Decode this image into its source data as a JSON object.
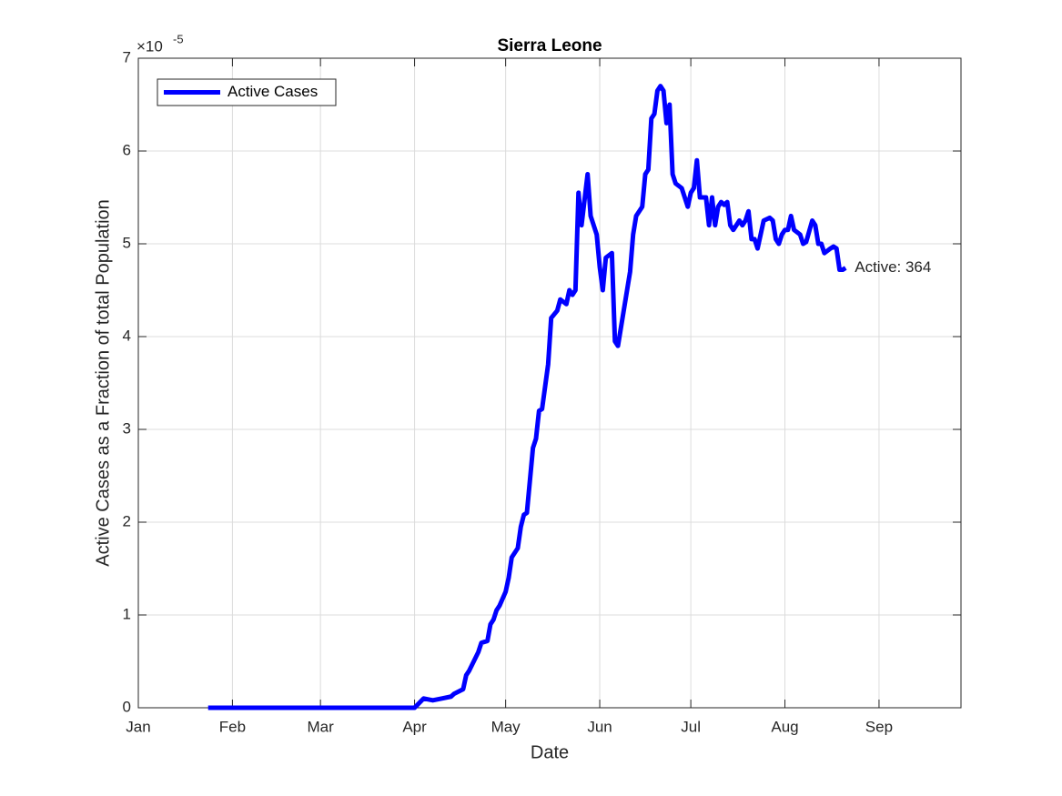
{
  "chart_data": {
    "type": "line",
    "title": "Sierra Leone",
    "x_label": "Date",
    "y_label": "Active Cases as a Fraction of total Population",
    "y_exponent": {
      "base": "×10",
      "power": "-5"
    },
    "annotation": "Active: 364",
    "legend": "top-left",
    "grid": true,
    "xlim": [
      0,
      271
    ],
    "ylim": [
      0,
      7
    ],
    "xticks": [
      {
        "value": 0,
        "label": "Jan"
      },
      {
        "value": 31,
        "label": "Feb"
      },
      {
        "value": 60,
        "label": "Mar"
      },
      {
        "value": 91,
        "label": "Apr"
      },
      {
        "value": 121,
        "label": "May"
      },
      {
        "value": 152,
        "label": "Jun"
      },
      {
        "value": 182,
        "label": "Jul"
      },
      {
        "value": 213,
        "label": "Aug"
      },
      {
        "value": 244,
        "label": "Sep"
      }
    ],
    "yticks": [
      0,
      1,
      2,
      3,
      4,
      5,
      6,
      7
    ],
    "x": [
      23,
      91,
      94,
      97,
      100,
      103,
      104,
      107,
      108,
      109,
      112,
      113,
      115,
      116,
      117,
      118,
      119,
      121,
      122,
      123,
      125,
      126,
      127,
      128,
      130,
      131,
      132,
      133,
      135,
      136,
      138,
      139,
      141,
      142,
      143,
      144,
      145,
      146,
      148,
      149,
      151,
      152,
      153,
      154,
      156,
      157,
      158,
      159,
      161,
      162,
      163,
      164,
      166,
      167,
      168,
      169,
      170,
      171,
      172,
      173,
      174,
      175,
      176,
      177,
      179,
      180,
      181,
      182,
      183,
      184,
      185,
      187,
      188,
      189,
      190,
      191,
      192,
      193,
      194,
      195,
      196,
      198,
      199,
      200,
      201,
      202,
      203,
      204,
      205,
      206,
      208,
      209,
      210,
      211,
      212,
      213,
      214,
      215,
      216,
      218,
      219,
      220,
      222,
      223,
      224,
      225,
      226,
      228,
      229,
      230,
      231,
      232,
      233
    ],
    "series": [
      {
        "name": "Active Cases",
        "color": "#0000ff",
        "values": [
          0,
          0,
          0.1,
          0.08,
          0.1,
          0.12,
          0.15,
          0.2,
          0.35,
          0.4,
          0.6,
          0.7,
          0.72,
          0.9,
          0.95,
          1.05,
          1.1,
          1.25,
          1.4,
          1.62,
          1.72,
          1.95,
          2.08,
          2.1,
          2.8,
          2.9,
          3.2,
          3.22,
          3.7,
          4.2,
          4.28,
          4.4,
          4.35,
          4.5,
          4.45,
          4.5,
          5.55,
          5.2,
          5.75,
          5.3,
          5.1,
          4.75,
          4.5,
          4.85,
          4.9,
          3.95,
          3.9,
          4.1,
          4.5,
          4.7,
          5.1,
          5.3,
          5.4,
          5.75,
          5.8,
          6.35,
          6.4,
          6.65,
          6.7,
          6.65,
          6.3,
          6.5,
          5.75,
          5.65,
          5.6,
          5.5,
          5.4,
          5.55,
          5.6,
          5.9,
          5.5,
          5.5,
          5.2,
          5.5,
          5.2,
          5.4,
          5.45,
          5.42,
          5.45,
          5.2,
          5.15,
          5.25,
          5.2,
          5.25,
          5.35,
          5.05,
          5.05,
          4.95,
          5.1,
          5.25,
          5.28,
          5.25,
          5.05,
          5.0,
          5.1,
          5.15,
          5.15,
          5.3,
          5.15,
          5.1,
          5.0,
          5.02,
          5.25,
          5.2,
          5.0,
          5.0,
          4.9,
          4.95,
          4.97,
          4.95,
          4.72,
          4.72,
          4.74
        ]
      }
    ]
  }
}
